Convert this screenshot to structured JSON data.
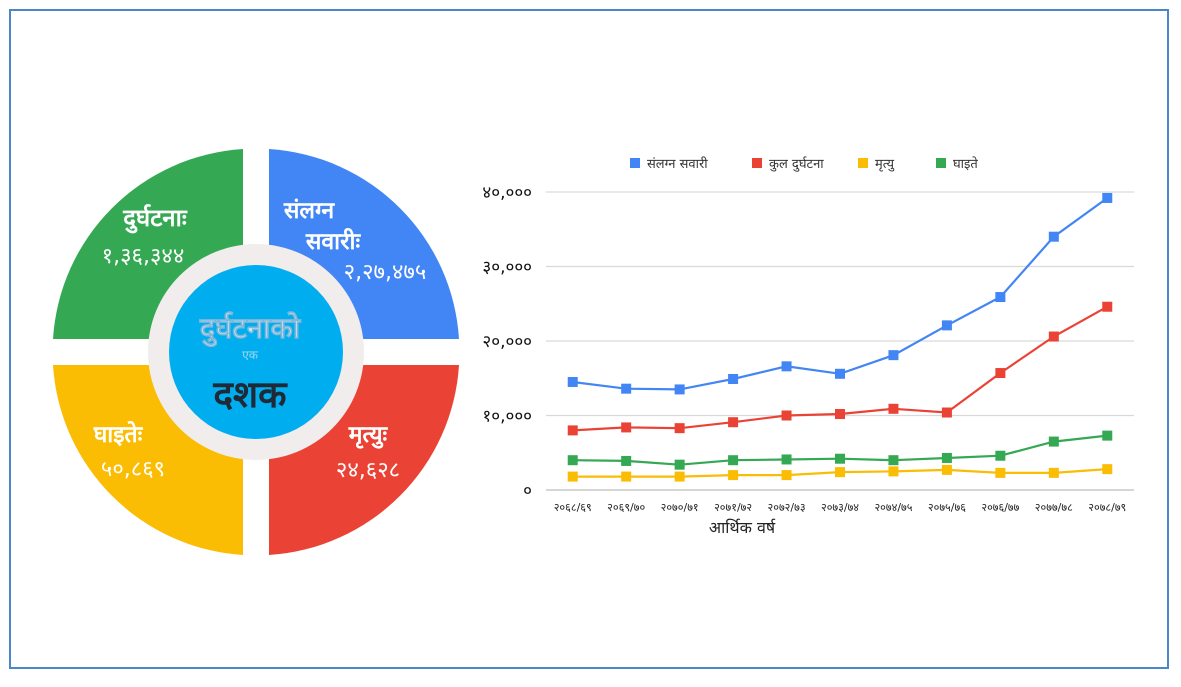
{
  "infographic": {
    "center_title": "दुर्घटनाको",
    "center_small": "एक",
    "center_big": "दशक",
    "quadrants": [
      {
        "label": "दुर्घटनाः",
        "value": "१,३६,३४४",
        "color": "#34a853"
      },
      {
        "label_line1": "संलग्न",
        "label_line2": "सवारीः",
        "value": "२,२७,४७५",
        "color": "#4285f4"
      },
      {
        "label": "घाइतेः",
        "value": "५०,८६९",
        "color": "#fbbc04"
      },
      {
        "label": "मृत्युः",
        "value": "२४,६२८",
        "color": "#ea4335"
      }
    ]
  },
  "chart_data": {
    "type": "line",
    "xlabel": "आर्थिक वर्ष",
    "ylabel": "",
    "ylim": [
      0,
      40000
    ],
    "y_ticks": [
      0,
      10000,
      20000,
      30000,
      40000
    ],
    "y_tick_labels": [
      "०",
      "१०,०००",
      "२०,०००",
      "३०,०००",
      "४०,०००"
    ],
    "legend_position": "top",
    "grid": true,
    "categories": [
      "२०६८/६९",
      "२०६९/७०",
      "२०७०/७१",
      "२०७१/७२",
      "२०७२/७३",
      "२०७३/७४",
      "२०७४/७५",
      "२०७५/७६",
      "२०७६/७७",
      "२०७७/७८",
      "२०७८/७९"
    ],
    "series": [
      {
        "name": "संलग्न सवारी",
        "color": "#4285f4",
        "values": [
          14500,
          13600,
          13500,
          14900,
          16600,
          15600,
          18100,
          22100,
          25900,
          34000,
          39200
        ]
      },
      {
        "name": "कुल दुर्घटना",
        "color": "#ea4335",
        "values": [
          8000,
          8400,
          8300,
          9100,
          10000,
          10200,
          10900,
          10400,
          15700,
          20600,
          24600
        ]
      },
      {
        "name": "मृत्यु",
        "color": "#fbbc04",
        "values": [
          1800,
          1800,
          1800,
          2000,
          2000,
          2400,
          2500,
          2700,
          2300,
          2300,
          2800
        ]
      },
      {
        "name": "घाइते",
        "color": "#34a853",
        "values": [
          4000,
          3900,
          3400,
          4000,
          4100,
          4200,
          4000,
          4300,
          4600,
          6500,
          7300
        ]
      }
    ]
  }
}
